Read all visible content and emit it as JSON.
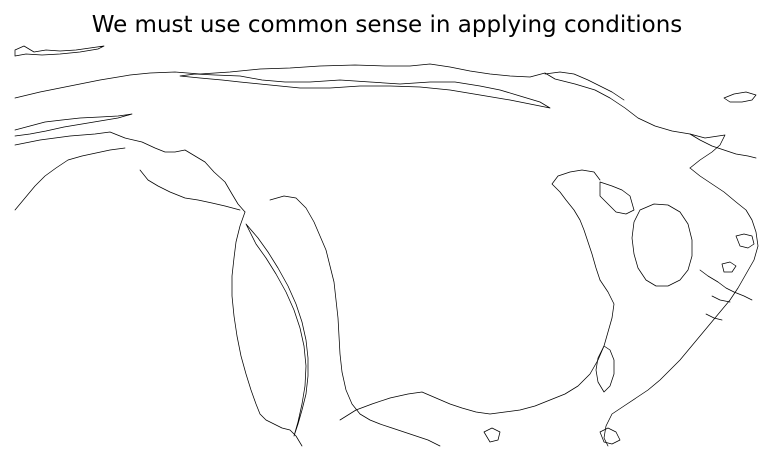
{
  "figure": {
    "title": "We must use common sense in applying conditions"
  },
  "map": {
    "style": "coastline outlines only",
    "line_color": "#000000",
    "background_color": "#ffffff",
    "features": [
      "arctic-coast",
      "arctic-island",
      "alaska-peninsula",
      "aleutian-chain",
      "pacific-coast",
      "baja-california",
      "hudson-bay",
      "labrador-coast",
      "greenland-fragment",
      "atlantic-coast",
      "florida-peninsula",
      "gulf-coast",
      "caribbean-islands"
    ]
  }
}
